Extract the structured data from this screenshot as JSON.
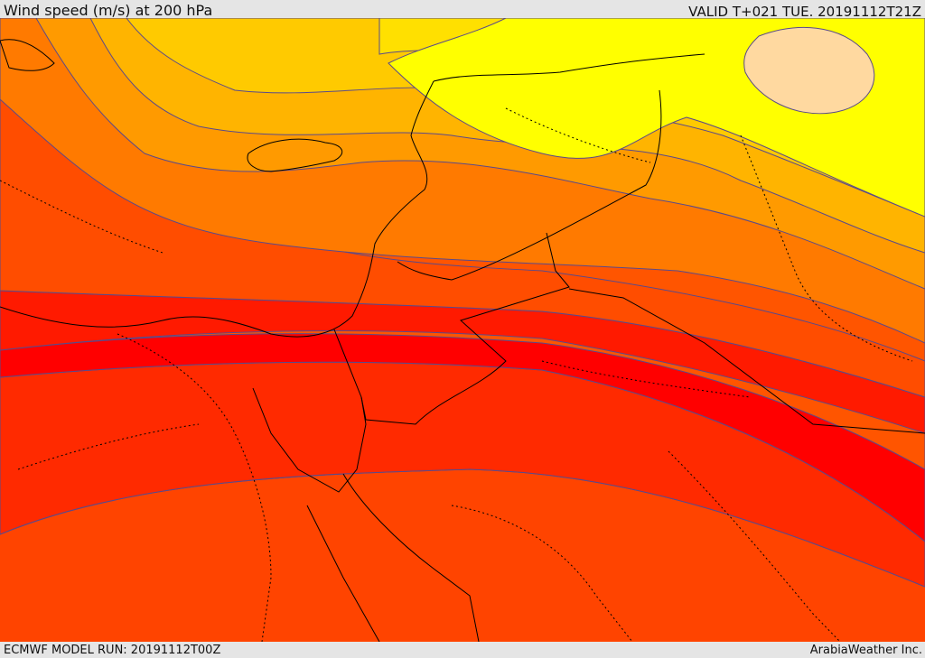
{
  "header": {
    "title": "Wind speed (m/s) at 200 hPa",
    "valid": "VALID T+021 TUE. 20191112T21Z"
  },
  "footer": {
    "model_run": "ECMWF MODEL RUN: 20191112T00Z",
    "credit": "ArabiaWeather Inc."
  },
  "map": {
    "variable": "wind speed at 200 hPa",
    "units": "m/s",
    "palette": [
      "#ffe9b0",
      "#ffff00",
      "#ffe100",
      "#ffca00",
      "#ffb100",
      "#ff9900",
      "#ff7f00",
      "#ff6000",
      "#ff4000",
      "#ff2000",
      "#ff0000"
    ],
    "contour_line_color": "#5a4a8a",
    "border_color": "#000000"
  }
}
